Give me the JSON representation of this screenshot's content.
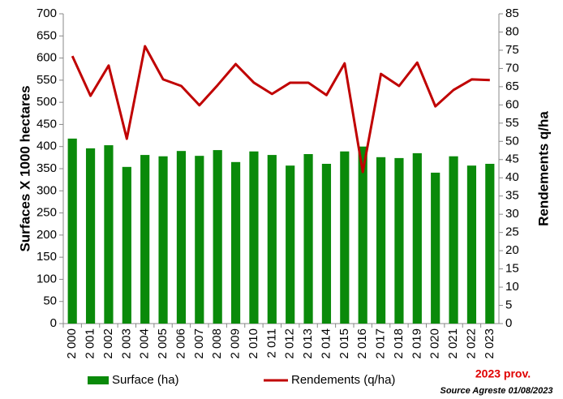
{
  "chart_data": {
    "type": "bar-line",
    "y_label": "Surfaces X 1000 hectares",
    "y2_label": "Rendements q/ha",
    "categories": [
      "2 000",
      "2 001",
      "2 002",
      "2 003",
      "2 004",
      "2 005",
      "2 006",
      "2 007",
      "2 008",
      "2 009",
      "2 010",
      "2 011",
      "2 012",
      "2 013",
      "2 014",
      "2 015",
      "2 016",
      "2 017",
      "2 018",
      "2 019",
      "2 020",
      "2 021",
      "2 022",
      "2 023"
    ],
    "series": [
      {
        "name": "Surface (ha)",
        "type": "bar",
        "color": "#0a8a0a",
        "values": [
          418,
          396,
          403,
          354,
          381,
          378,
          390,
          379,
          392,
          365,
          389,
          381,
          357,
          383,
          361,
          389,
          400,
          376,
          374,
          385,
          341,
          378,
          357,
          361
        ]
      },
      {
        "name": "Rendements (q/ha)",
        "type": "line",
        "axis": "y2",
        "color": "#c00000",
        "values": [
          73.4,
          62.5,
          70.8,
          50.7,
          76.1,
          67.0,
          65.2,
          59.9,
          65.4,
          71.2,
          66.1,
          63.0,
          66.1,
          66.1,
          62.7,
          71.4,
          41.6,
          68.5,
          65.2,
          71.6,
          59.6,
          64.1,
          67.0,
          66.8
        ]
      }
    ],
    "ylim": [
      0,
      700
    ],
    "yticks": [
      0,
      50,
      100,
      150,
      200,
      250,
      300,
      350,
      400,
      450,
      500,
      550,
      600,
      650,
      700
    ],
    "y2lim": [
      0,
      85
    ],
    "y2ticks": [
      0,
      5,
      10,
      15,
      20,
      25,
      30,
      35,
      40,
      45,
      50,
      55,
      60,
      65,
      70,
      75,
      80,
      85
    ],
    "annotations": [
      "2023 prov.",
      "Source Agreste 01/08/2023"
    ],
    "legend": "bottom"
  }
}
